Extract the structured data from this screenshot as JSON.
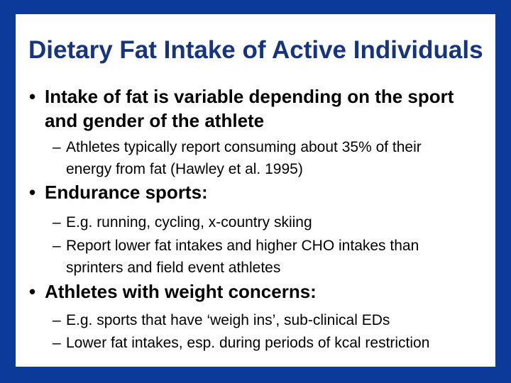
{
  "slide": {
    "title": "Dietary Fat Intake of Active Individuals",
    "colors": {
      "border_blue": "#0B3A9A",
      "title_navy": "#17357E",
      "body_text": "#000000",
      "content_background": "#FFFFFF"
    },
    "markers": {
      "level1": "•",
      "level2": "–"
    },
    "bullets": [
      {
        "level": 1,
        "text": "Intake of fat is variable depending on the sport\nand gender of the athlete"
      },
      {
        "level": 2,
        "text": "Athletes typically report consuming about 35% of their\nenergy from fat (Hawley et al. 1995)"
      },
      {
        "level": 1,
        "text": "Endurance sports:"
      },
      {
        "level": 2,
        "text": "E.g. running, cycling, x-country skiing"
      },
      {
        "level": 2,
        "text": "Report lower fat intakes and higher CHO intakes than\nsprinters and field event athletes"
      },
      {
        "level": 1,
        "text": "Athletes with weight concerns:"
      },
      {
        "level": 2,
        "text": "E.g. sports that have ‘weigh ins’, sub-clinical EDs"
      },
      {
        "level": 2,
        "text": "Lower fat intakes, esp. during periods of kcal restriction"
      }
    ]
  }
}
